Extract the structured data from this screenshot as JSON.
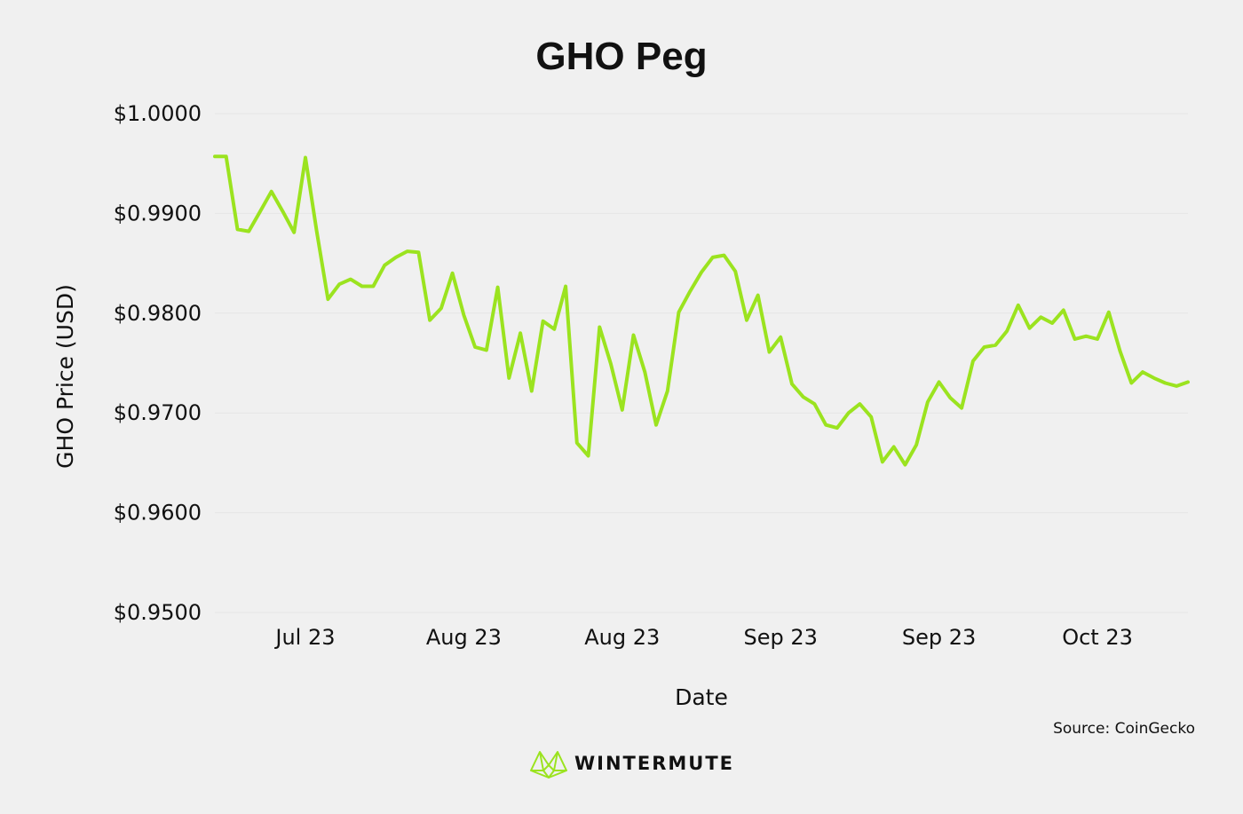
{
  "chart_data": {
    "type": "line",
    "title": "GHO Peg",
    "xlabel": "Date",
    "ylabel": "GHO Price (USD)",
    "ylim": [
      0.95,
      1.0
    ],
    "y_ticks": [
      1.0,
      0.99,
      0.98,
      0.97,
      0.96,
      0.95
    ],
    "y_tick_labels": [
      "$1.0000",
      "$0.9900",
      "$0.9800",
      "$0.9700",
      "$0.9600",
      "$0.9500"
    ],
    "x_tick_labels": [
      "Jul 23",
      "Aug 23",
      "Aug 23",
      "Sep 23",
      "Sep 23",
      "Oct 23"
    ],
    "x_tick_index": [
      8,
      22,
      36,
      50,
      64,
      78
    ],
    "grid": true,
    "series": [
      {
        "color": "#9be31f",
        "values": [
          0.9957,
          0.9957,
          0.9884,
          0.9882,
          0.9902,
          0.9922,
          0.9902,
          0.9881,
          0.9956,
          0.9882,
          0.9814,
          0.9829,
          0.9834,
          0.9827,
          0.9827,
          0.9848,
          0.9856,
          0.9862,
          0.9861,
          0.9793,
          0.9805,
          0.984,
          0.9798,
          0.9766,
          0.9763,
          0.9826,
          0.9735,
          0.978,
          0.9722,
          0.9792,
          0.9784,
          0.9827,
          0.967,
          0.9657,
          0.9786,
          0.9749,
          0.9703,
          0.9778,
          0.9741,
          0.9688,
          0.9722,
          0.9801,
          0.9822,
          0.9841,
          0.9856,
          0.9858,
          0.9842,
          0.9793,
          0.9818,
          0.9761,
          0.9776,
          0.9729,
          0.9716,
          0.9709,
          0.9688,
          0.9685,
          0.97,
          0.9709,
          0.9696,
          0.9651,
          0.9666,
          0.9648,
          0.9668,
          0.9711,
          0.9731,
          0.9715,
          0.9705,
          0.9752,
          0.9766,
          0.9768,
          0.9782,
          0.9808,
          0.9785,
          0.9796,
          0.979,
          0.9803,
          0.9774,
          0.9777,
          0.9774,
          0.9801,
          0.9762,
          0.973,
          0.9741,
          0.9735,
          0.973,
          0.9727,
          0.9731
        ]
      }
    ],
    "source": "Source: CoinGecko"
  },
  "brand": {
    "name": "WINTERMUTE",
    "logo_icon": "wintermute-logo-icon",
    "color": "#9be31f"
  }
}
